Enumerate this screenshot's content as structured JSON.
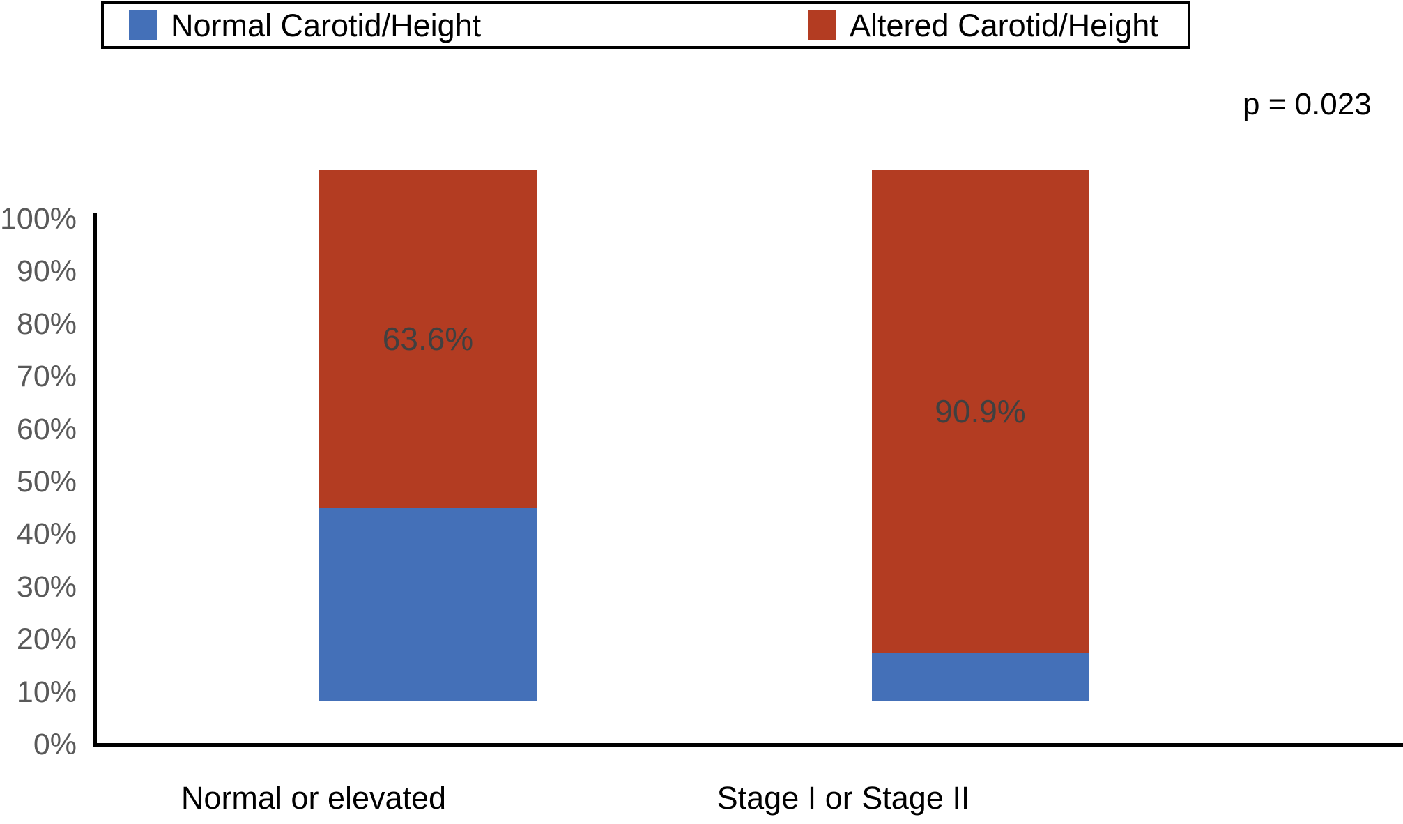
{
  "chart_data": {
    "type": "bar",
    "subtype": "stacked-100-percent",
    "title": "",
    "categories": [
      "Normal or elevated",
      "Stage I or Stage II"
    ],
    "series": [
      {
        "name": "Normal Carotid/Height",
        "color": "#4470B8",
        "values": [
          36.4,
          9.1
        ]
      },
      {
        "name": "Altered Carotid/Height",
        "color": "#B33C22",
        "values": [
          63.6,
          90.9
        ]
      }
    ],
    "segment_labels": [
      "63.6%",
      "90.9%"
    ],
    "annotation": "p = 0.023",
    "y_axis": {
      "ticks": [
        "100%",
        "90%",
        "80%",
        "70%",
        "60%",
        "50%",
        "40%",
        "30%",
        "20%",
        "10%",
        "0%"
      ],
      "range": [
        0,
        100
      ],
      "grid": false
    },
    "legend_position": "top",
    "label_color": "#404040",
    "tick_color": "#595959",
    "axis_color": "#000000"
  }
}
